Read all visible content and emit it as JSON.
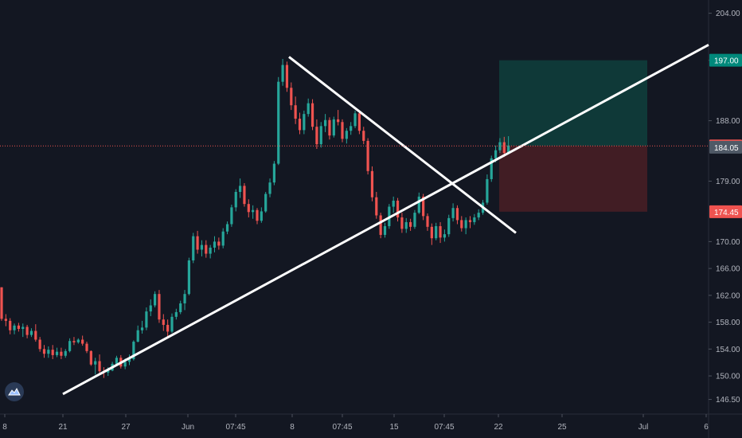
{
  "chart_data": {
    "type": "candlestick",
    "y_axis": {
      "position": "right",
      "ticks": [
        "204.00",
        "197.00",
        "188.00",
        "179.00",
        "170.00",
        "166.00",
        "162.00",
        "158.00",
        "154.00",
        "150.00",
        "146.50"
      ],
      "ylim": [
        145.5,
        205.5
      ]
    },
    "x_axis": {
      "ticks": [
        "8",
        "21",
        "27",
        "Jun",
        "07:45",
        "8",
        "07:45",
        "15",
        "07:45",
        "22",
        "25",
        "Jul",
        "6"
      ]
    },
    "price_tags": [
      {
        "label": "197.00",
        "value": 197.0,
        "color": "#00897b",
        "kind": "target"
      },
      {
        "label": "184.25",
        "value": 184.25,
        "color": "#ef5350",
        "kind": "last-price"
      },
      {
        "label": "184.05",
        "value": 184.05,
        "color": "#4f5966",
        "kind": "crosshair"
      },
      {
        "label": "174.45",
        "value": 174.45,
        "color": "#ef5350",
        "kind": "stop"
      }
    ],
    "current_price_line": 184.25,
    "position_tool": {
      "entry": 184.25,
      "target": 197.0,
      "stop": 174.45
    },
    "trendlines": [
      {
        "name": "ascending-support",
        "from": [
          0,
          147.3
        ],
        "to": [
          115,
          199.3
        ]
      },
      {
        "name": "descending-resistance",
        "from": [
          44,
          197.5
        ],
        "to": [
          79,
          171.3
        ]
      }
    ],
    "candles": [
      [
        163.2,
        163.2,
        158.2,
        158.5
      ],
      [
        158.5,
        159.2,
        157.4,
        158.2
      ],
      [
        158.2,
        158.6,
        156.2,
        156.8
      ],
      [
        156.8,
        157.8,
        156.2,
        157.5
      ],
      [
        157.5,
        157.9,
        156.6,
        157.0
      ],
      [
        157.0,
        157.8,
        155.8,
        157.3
      ],
      [
        157.3,
        157.6,
        155.6,
        156.1
      ],
      [
        156.1,
        157.1,
        155.8,
        156.7
      ],
      [
        156.7,
        157.7,
        155.1,
        155.4
      ],
      [
        155.4,
        155.8,
        153.6,
        154.0
      ],
      [
        154.0,
        154.6,
        152.7,
        153.3
      ],
      [
        153.3,
        154.4,
        152.7,
        153.9
      ],
      [
        153.9,
        154.6,
        152.5,
        153.1
      ],
      [
        153.1,
        154.2,
        152.8,
        153.6
      ],
      [
        153.6,
        154.2,
        152.5,
        153.0
      ],
      [
        153.0,
        154.0,
        152.7,
        153.7
      ],
      [
        153.7,
        155.6,
        153.5,
        155.2
      ],
      [
        155.2,
        155.8,
        154.6,
        155.0
      ],
      [
        155.0,
        155.6,
        154.8,
        155.4
      ],
      [
        155.4,
        156.0,
        154.5,
        154.8
      ],
      [
        154.8,
        155.1,
        153.4,
        153.7
      ],
      [
        153.7,
        153.8,
        151.5,
        151.7
      ],
      [
        151.7,
        152.7,
        150.2,
        152.2
      ],
      [
        152.2,
        153.2,
        150.2,
        150.7
      ],
      [
        150.7,
        151.3,
        149.7,
        150.5
      ],
      [
        150.5,
        151.3,
        150.0,
        150.8
      ],
      [
        150.8,
        152.1,
        150.7,
        151.8
      ],
      [
        151.8,
        153.0,
        151.6,
        152.7
      ],
      [
        152.7,
        153.1,
        151.1,
        151.4
      ],
      [
        151.4,
        152.6,
        151.0,
        152.1
      ],
      [
        152.1,
        153.2,
        151.6,
        152.5
      ],
      [
        152.5,
        155.3,
        152.3,
        155.1
      ],
      [
        155.1,
        157.5,
        155.0,
        156.8
      ],
      [
        156.8,
        158.2,
        156.3,
        157.2
      ],
      [
        157.2,
        160.2,
        156.8,
        159.6
      ],
      [
        159.6,
        161.4,
        158.9,
        160.5
      ],
      [
        160.5,
        162.6,
        160.2,
        162.2
      ],
      [
        162.2,
        162.8,
        157.9,
        158.4
      ],
      [
        158.4,
        159.2,
        156.7,
        157.6
      ],
      [
        157.6,
        158.4,
        155.8,
        156.6
      ],
      [
        156.6,
        159.3,
        156.4,
        158.8
      ],
      [
        158.8,
        160.0,
        158.4,
        159.5
      ],
      [
        159.5,
        161.2,
        159.2,
        160.8
      ],
      [
        160.8,
        162.8,
        159.8,
        162.2
      ],
      [
        162.2,
        167.6,
        162.0,
        167.2
      ],
      [
        167.2,
        171.3,
        166.8,
        170.8
      ],
      [
        170.8,
        171.6,
        168.2,
        168.8
      ],
      [
        168.8,
        170.2,
        167.8,
        169.5
      ],
      [
        169.5,
        170.2,
        167.6,
        168.2
      ],
      [
        168.2,
        169.5,
        167.5,
        169.1
      ],
      [
        169.1,
        170.8,
        168.4,
        170.0
      ],
      [
        170.0,
        170.6,
        168.8,
        169.4
      ],
      [
        169.4,
        172.0,
        169.0,
        171.5
      ],
      [
        171.5,
        173.0,
        171.1,
        172.6
      ],
      [
        172.6,
        175.5,
        172.2,
        175.1
      ],
      [
        175.1,
        177.8,
        174.5,
        177.4
      ],
      [
        177.4,
        179.4,
        176.5,
        178.3
      ],
      [
        178.3,
        178.7,
        175.2,
        175.6
      ],
      [
        175.6,
        176.3,
        173.6,
        174.4
      ],
      [
        174.4,
        175.4,
        173.4,
        174.7
      ],
      [
        174.7,
        175.0,
        172.6,
        173.1
      ],
      [
        173.1,
        175.1,
        172.8,
        174.5
      ],
      [
        174.5,
        177.4,
        174.3,
        177.1
      ],
      [
        177.1,
        179.4,
        176.6,
        178.8
      ],
      [
        178.8,
        182.0,
        178.4,
        181.6
      ],
      [
        181.6,
        194.5,
        181.4,
        193.8
      ],
      [
        193.8,
        197.2,
        193.2,
        196.3
      ],
      [
        196.3,
        196.8,
        192.3,
        192.9
      ],
      [
        192.9,
        193.7,
        189.6,
        190.3
      ],
      [
        190.3,
        191.6,
        187.5,
        188.3
      ],
      [
        188.3,
        189.2,
        186.0,
        186.6
      ],
      [
        186.6,
        189.5,
        186.0,
        189.0
      ],
      [
        189.0,
        191.3,
        188.6,
        190.6
      ],
      [
        190.6,
        191.2,
        186.6,
        187.1
      ],
      [
        187.1,
        188.2,
        183.8,
        184.5
      ],
      [
        184.5,
        187.8,
        184.0,
        187.2
      ],
      [
        187.2,
        189.0,
        186.3,
        188.1
      ],
      [
        188.1,
        188.5,
        185.2,
        185.8
      ],
      [
        185.8,
        188.6,
        185.5,
        188.2
      ],
      [
        188.2,
        189.6,
        187.3,
        187.8
      ],
      [
        187.8,
        188.2,
        184.8,
        185.3
      ],
      [
        185.3,
        186.9,
        184.6,
        186.5
      ],
      [
        186.5,
        187.8,
        185.9,
        187.2
      ],
      [
        187.2,
        189.5,
        186.9,
        189.1
      ],
      [
        189.1,
        189.4,
        186.0,
        186.5
      ],
      [
        186.5,
        187.1,
        184.5,
        185.0
      ],
      [
        185.0,
        185.4,
        180.0,
        180.5
      ],
      [
        180.5,
        181.2,
        176.0,
        176.6
      ],
      [
        176.6,
        177.4,
        173.4,
        173.9
      ],
      [
        173.9,
        174.3,
        170.5,
        171.0
      ],
      [
        171.0,
        172.8,
        170.6,
        172.3
      ],
      [
        172.3,
        175.6,
        171.9,
        175.2
      ],
      [
        175.2,
        176.7,
        174.3,
        176.1
      ],
      [
        176.1,
        176.5,
        173.0,
        173.6
      ],
      [
        173.6,
        174.3,
        171.3,
        171.9
      ],
      [
        171.9,
        173.5,
        171.3,
        172.9
      ],
      [
        172.9,
        173.4,
        171.6,
        172.2
      ],
      [
        172.2,
        174.7,
        171.9,
        174.3
      ],
      [
        174.3,
        177.3,
        174.1,
        176.7
      ],
      [
        176.7,
        177.1,
        173.2,
        173.8
      ],
      [
        173.8,
        174.2,
        171.6,
        172.2
      ],
      [
        172.2,
        172.7,
        169.5,
        170.5
      ],
      [
        170.5,
        172.8,
        170.2,
        172.3
      ],
      [
        172.3,
        172.9,
        169.8,
        170.6
      ],
      [
        170.6,
        171.8,
        170.0,
        171.1
      ],
      [
        171.1,
        174.0,
        170.7,
        173.5
      ],
      [
        173.5,
        175.7,
        173.0,
        175.0
      ],
      [
        175.0,
        175.4,
        172.6,
        173.2
      ],
      [
        173.2,
        173.8,
        171.5,
        172.0
      ],
      [
        172.0,
        173.6,
        171.1,
        173.2
      ],
      [
        173.2,
        173.8,
        172.0,
        172.9
      ],
      [
        172.9,
        174.1,
        172.5,
        173.6
      ],
      [
        173.6,
        174.8,
        173.2,
        174.3
      ],
      [
        174.3,
        176.2,
        174.0,
        175.8
      ],
      [
        175.8,
        180.0,
        175.5,
        179.3
      ],
      [
        179.3,
        182.8,
        178.9,
        182.4
      ],
      [
        182.4,
        184.3,
        181.8,
        183.6
      ],
      [
        183.6,
        185.4,
        183.2,
        184.8
      ],
      [
        184.8,
        185.6,
        182.6,
        183.2
      ],
      [
        183.2,
        185.7,
        183.0,
        184.3
      ]
    ]
  }
}
